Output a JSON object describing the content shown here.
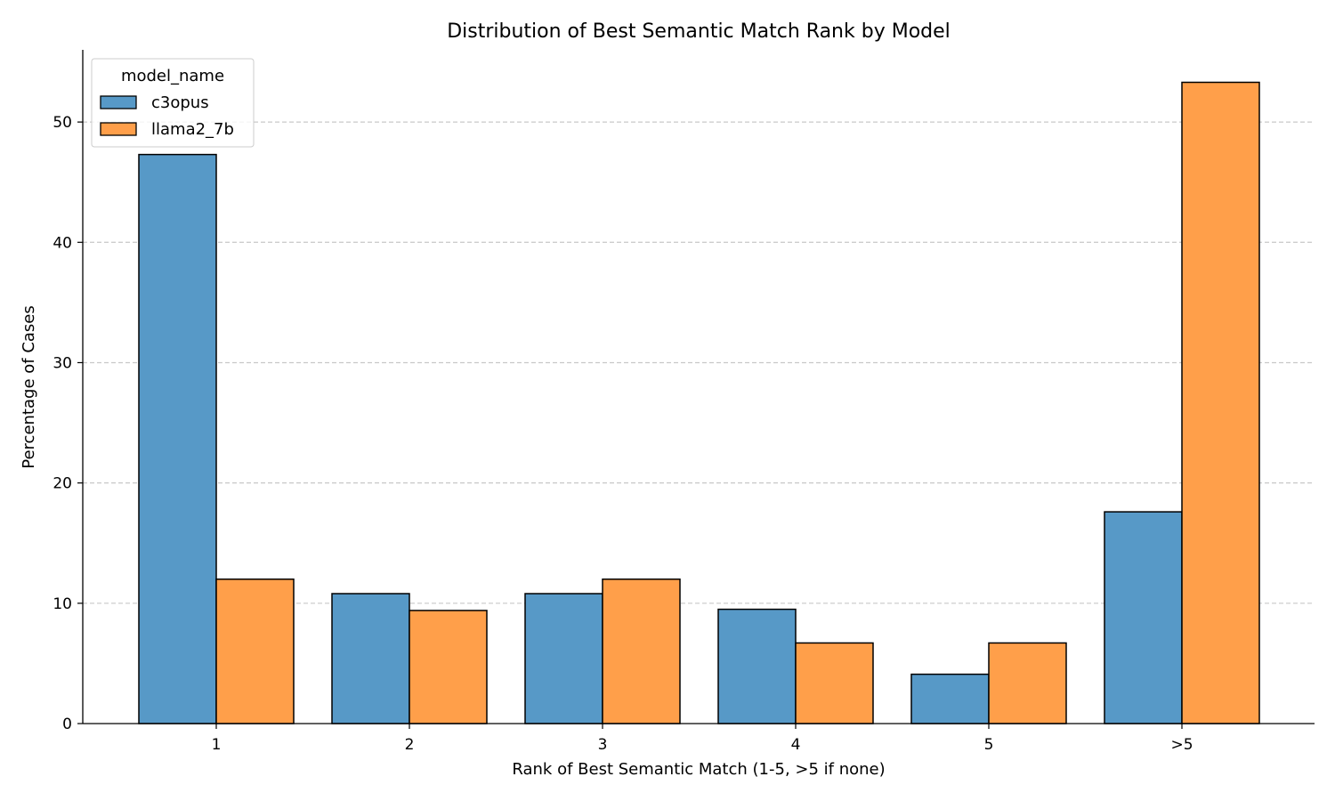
{
  "chart_data": {
    "type": "bar",
    "title": "Distribution of Best Semantic Match Rank by Model",
    "xlabel": "Rank of Best Semantic Match (1-5, >5 if none)",
    "ylabel": "Percentage of Cases",
    "categories": [
      "1",
      "2",
      "3",
      "4",
      "5",
      ">5"
    ],
    "series": [
      {
        "name": "c3opus",
        "values": [
          47.3,
          10.8,
          10.8,
          9.5,
          4.1,
          17.6
        ],
        "color": "#5799c7"
      },
      {
        "name": "llama2_7b",
        "values": [
          12.0,
          9.4,
          12.0,
          6.7,
          6.7,
          53.3
        ],
        "color": "#ff9f4a"
      }
    ],
    "ylim": [
      0,
      56
    ],
    "yticks": [
      0,
      10,
      20,
      30,
      40,
      50
    ],
    "grid": "y-dashed",
    "legend": {
      "title": "model_name",
      "placement": "top-left"
    }
  }
}
